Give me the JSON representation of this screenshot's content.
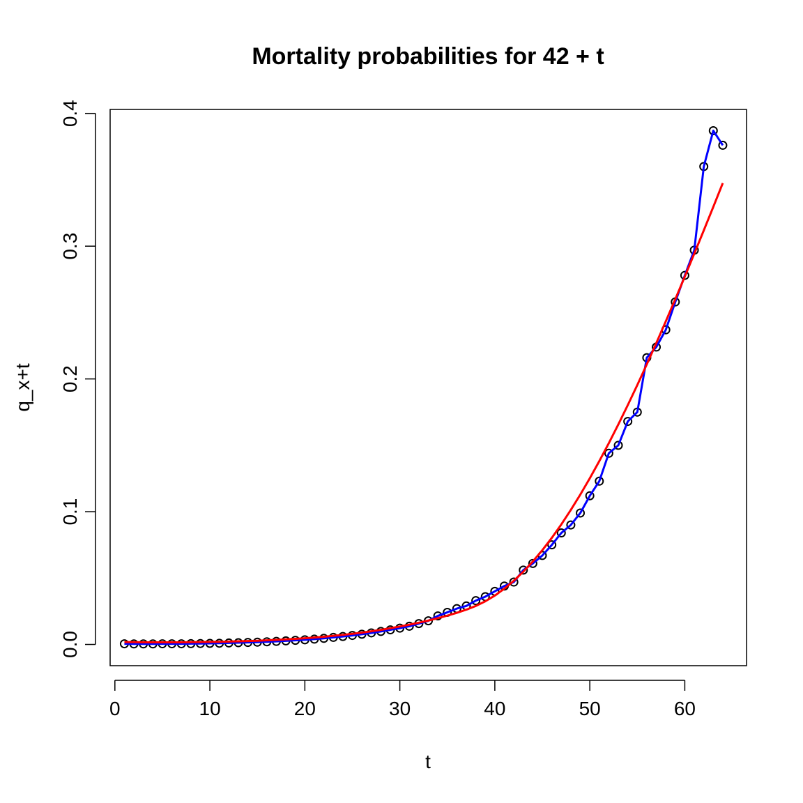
{
  "chart_data": {
    "type": "scatter",
    "title": "Mortality probabilities for 42 + t",
    "xlabel": "t",
    "ylabel": "q_x+t",
    "xlim": [
      -0.5,
      66.5
    ],
    "ylim": [
      -0.016,
      0.403
    ],
    "x_ticks": [
      0,
      10,
      20,
      30,
      40,
      50,
      60
    ],
    "y_ticks": [
      0.0,
      0.1,
      0.2,
      0.3,
      0.4
    ],
    "x_tick_labels": [
      "0",
      "10",
      "20",
      "30",
      "40",
      "50",
      "60"
    ],
    "y_tick_labels": [
      "0.0",
      "0.1",
      "0.2",
      "0.3",
      "0.4"
    ],
    "grid": false,
    "legend": "none",
    "x": [
      1,
      2,
      3,
      4,
      5,
      6,
      7,
      8,
      9,
      10,
      11,
      12,
      13,
      14,
      15,
      16,
      17,
      18,
      19,
      20,
      21,
      22,
      23,
      24,
      25,
      26,
      27,
      28,
      29,
      30,
      31,
      32,
      33,
      34,
      35,
      36,
      37,
      38,
      39,
      40,
      41,
      42,
      43,
      44,
      45,
      46,
      47,
      48,
      49,
      50,
      51,
      52,
      53,
      54,
      55,
      56,
      57,
      58,
      59,
      60,
      61,
      62,
      63,
      64
    ],
    "series": [
      {
        "style": "points",
        "color": "#000000",
        "values": [
          0.0005,
          0.0004,
          0.0004,
          0.0004,
          0.0005,
          0.0005,
          0.0005,
          0.0006,
          0.0007,
          0.0008,
          0.0009,
          0.0011,
          0.0013,
          0.0015,
          0.0017,
          0.002,
          0.0023,
          0.0027,
          0.0031,
          0.0035,
          0.004,
          0.0046,
          0.0053,
          0.006,
          0.0068,
          0.0077,
          0.0087,
          0.0098,
          0.011,
          0.0123,
          0.0137,
          0.0157,
          0.0178,
          0.0215,
          0.0242,
          0.027,
          0.029,
          0.033,
          0.036,
          0.04,
          0.044,
          0.047,
          0.056,
          0.061,
          0.067,
          0.075,
          0.084,
          0.09,
          0.099,
          0.112,
          0.123,
          0.144,
          0.15,
          0.168,
          0.175,
          0.216,
          0.224,
          0.237,
          0.258,
          0.278,
          0.297,
          0.36,
          0.387,
          0.376
        ]
      },
      {
        "style": "line",
        "color": "#0000ff",
        "values": [
          0.0005,
          0.0004,
          0.0004,
          0.0004,
          0.0005,
          0.0005,
          0.0005,
          0.0006,
          0.0007,
          0.0008,
          0.0009,
          0.0011,
          0.0013,
          0.0015,
          0.0017,
          0.002,
          0.0023,
          0.0027,
          0.0031,
          0.0035,
          0.004,
          0.0046,
          0.0053,
          0.006,
          0.0068,
          0.0077,
          0.0087,
          0.0098,
          0.011,
          0.0123,
          0.0137,
          0.0157,
          0.0178,
          0.0215,
          0.0242,
          0.027,
          0.029,
          0.033,
          0.036,
          0.04,
          0.044,
          0.047,
          0.056,
          0.061,
          0.067,
          0.075,
          0.084,
          0.09,
          0.099,
          0.112,
          0.123,
          0.144,
          0.15,
          0.168,
          0.175,
          0.216,
          0.224,
          0.237,
          0.258,
          0.278,
          0.297,
          0.36,
          0.387,
          0.376
        ]
      },
      {
        "style": "line",
        "color": "#ff0000",
        "values": [
          0.0018,
          0.0017,
          0.0016,
          0.0016,
          0.0016,
          0.0016,
          0.0016,
          0.0017,
          0.0018,
          0.0019,
          0.002,
          0.0022,
          0.0024,
          0.0026,
          0.0028,
          0.0031,
          0.0034,
          0.0038,
          0.0042,
          0.0047,
          0.0052,
          0.0058,
          0.0065,
          0.0072,
          0.008,
          0.0089,
          0.0099,
          0.011,
          0.0122,
          0.0135,
          0.0149,
          0.0164,
          0.018,
          0.0198,
          0.0217,
          0.0238,
          0.0262,
          0.029,
          0.0325,
          0.0368,
          0.042,
          0.048,
          0.0548,
          0.0625,
          0.071,
          0.0803,
          0.0904,
          0.1013,
          0.1129,
          0.1252,
          0.1381,
          0.1516,
          0.1657,
          0.1803,
          0.1954,
          0.211,
          0.227,
          0.2434,
          0.2601,
          0.2771,
          0.2944,
          0.3119,
          0.3296,
          0.3475
        ]
      }
    ]
  }
}
